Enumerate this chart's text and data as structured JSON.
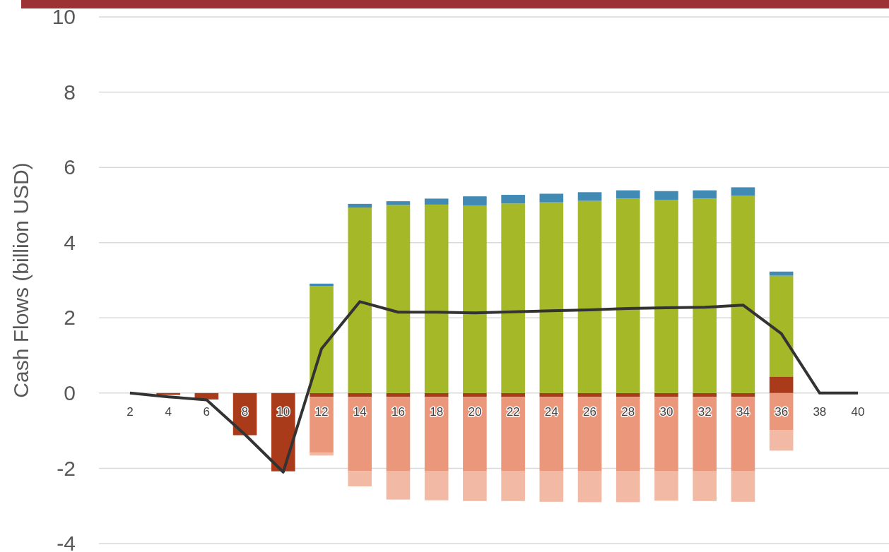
{
  "chart_data": {
    "type": "bar",
    "stacked": true,
    "ylabel": "Cash Flows (billion USD)",
    "categories": [
      "2",
      "4",
      "6",
      "8",
      "10",
      "12",
      "14",
      "16",
      "18",
      "20",
      "22",
      "24",
      "26",
      "28",
      "30",
      "32",
      "34",
      "36",
      "38",
      "40"
    ],
    "ylim": [
      -4,
      10
    ],
    "yticks": [
      -4,
      -2,
      0,
      2,
      4,
      6,
      8,
      10
    ],
    "grid": "y",
    "series": [
      {
        "color": "#a93a1a",
        "values": [
          0,
          -0.05,
          -0.17,
          -1.12,
          -2.08,
          -0.1,
          -0.1,
          -0.1,
          -0.1,
          -0.1,
          -0.1,
          -0.1,
          -0.1,
          -0.1,
          -0.1,
          -0.1,
          -0.1,
          0.44,
          0,
          0
        ]
      },
      {
        "color": "#a5b828",
        "values": [
          0,
          0,
          0,
          0,
          0,
          2.85,
          4.93,
          5.0,
          5.01,
          4.99,
          5.04,
          5.07,
          5.11,
          5.17,
          5.14,
          5.17,
          5.25,
          2.68,
          0,
          0
        ]
      },
      {
        "color": "#418ab3",
        "values": [
          0,
          0,
          0,
          0,
          0,
          0.06,
          0.1,
          0.1,
          0.16,
          0.24,
          0.23,
          0.23,
          0.23,
          0.22,
          0.23,
          0.22,
          0.22,
          0.11,
          0,
          0
        ]
      },
      {
        "color": "#eb977c",
        "values": [
          0,
          0,
          0,
          0,
          0,
          -1.49,
          -1.97,
          -1.98,
          -1.98,
          -1.98,
          -1.98,
          -1.98,
          -1.98,
          -1.98,
          -1.98,
          -1.98,
          -1.98,
          -0.99,
          0,
          0
        ]
      },
      {
        "color": "#f2b9a5",
        "values": [
          0,
          0,
          0,
          0,
          0,
          -0.07,
          -0.41,
          -0.75,
          -0.77,
          -0.79,
          -0.79,
          -0.81,
          -0.82,
          -0.82,
          -0.78,
          -0.79,
          -0.81,
          -0.54,
          0,
          0
        ]
      },
      {
        "type": "line",
        "color": "#333333",
        "line_style": "solid",
        "marker": "none",
        "values": [
          0,
          -0.1,
          -0.18,
          -1.1,
          -2.1,
          1.18,
          2.43,
          2.15,
          2.15,
          2.13,
          2.16,
          2.19,
          2.21,
          2.25,
          2.27,
          2.28,
          2.34,
          1.58,
          0,
          0
        ]
      }
    ]
  }
}
